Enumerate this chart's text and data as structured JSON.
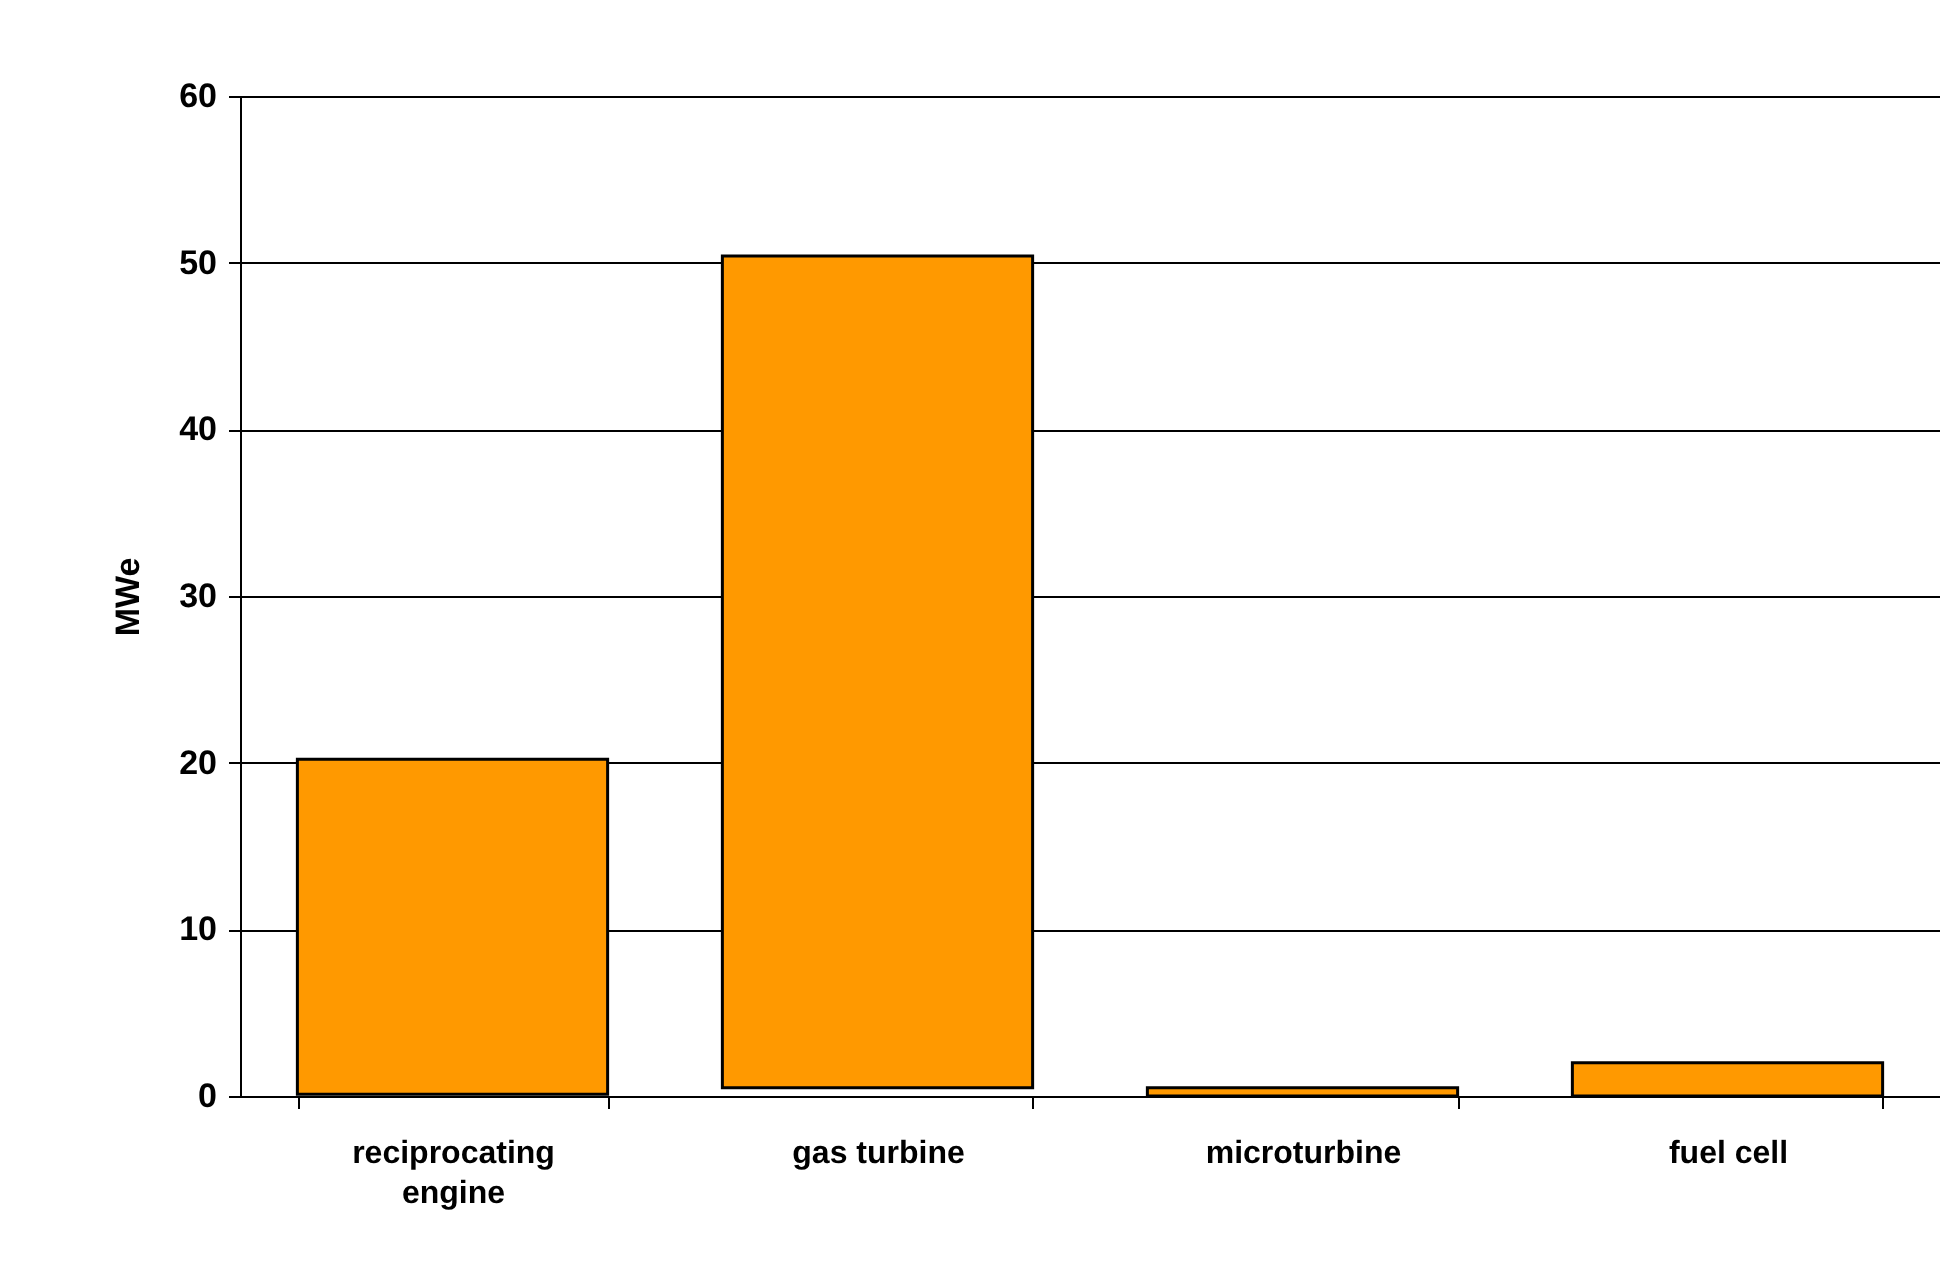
{
  "chart_data": {
    "type": "bar",
    "ylabel": "MWe",
    "categories": [
      "reciprocating engine",
      "gas turbine",
      "microturbine",
      "fuel cell"
    ],
    "values": [
      20.1,
      49.9,
      0.5,
      2
    ],
    "base": [
      0.1,
      0.5,
      0,
      0
    ],
    "color": "#ff9900",
    "ylim": [
      0,
      60
    ],
    "yticks": [
      0,
      10,
      20,
      30,
      40,
      50,
      60
    ],
    "grid": "y"
  }
}
